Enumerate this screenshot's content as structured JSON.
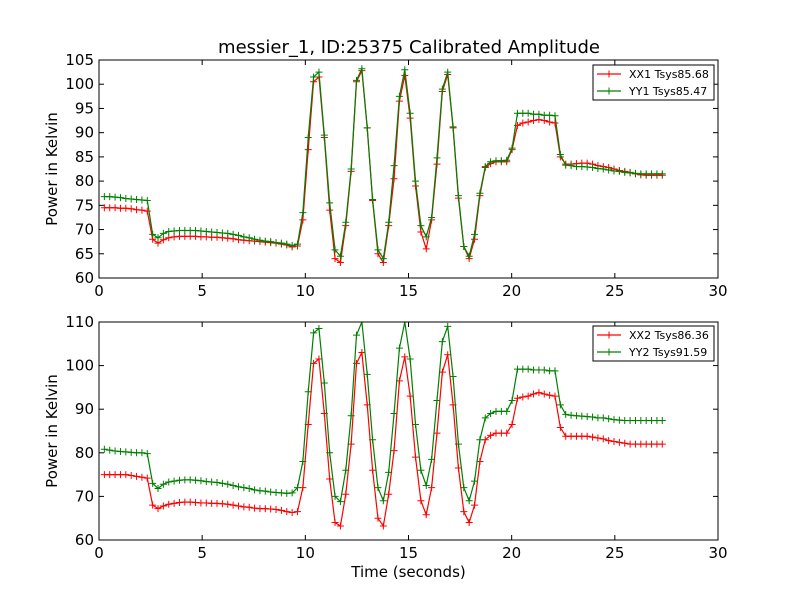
{
  "figure_title": "messier_1, ID:25375 Calibrated Amplitude",
  "chart_data": [
    {
      "type": "line",
      "title": "messier_1, ID:25375 Calibrated Amplitude",
      "xlabel": "",
      "ylabel": "Power in Kelvin",
      "xlim": [
        0,
        30
      ],
      "ylim": [
        60,
        105
      ],
      "xticks": [
        0,
        5,
        10,
        15,
        20,
        25,
        30
      ],
      "yticks": [
        60,
        65,
        70,
        75,
        80,
        85,
        90,
        95,
        100,
        105
      ],
      "grid": false,
      "legend_position": "top-right",
      "x": [
        0.26,
        0.52,
        0.78,
        1.04,
        1.3,
        1.56,
        1.82,
        2.08,
        2.34,
        2.6,
        2.86,
        3.12,
        3.38,
        3.64,
        3.9,
        4.16,
        4.42,
        4.68,
        4.94,
        5.2,
        5.46,
        5.72,
        5.98,
        6.24,
        6.5,
        6.76,
        7.02,
        7.28,
        7.54,
        7.8,
        8.06,
        8.32,
        8.58,
        8.84,
        9.1,
        9.36,
        9.62,
        9.88,
        10.14,
        10.4,
        10.66,
        10.92,
        11.18,
        11.44,
        11.7,
        11.96,
        12.22,
        12.48,
        12.74,
        13.0,
        13.26,
        13.52,
        13.78,
        14.04,
        14.3,
        14.56,
        14.82,
        15.08,
        15.34,
        15.6,
        15.86,
        16.12,
        16.38,
        16.64,
        16.9,
        17.16,
        17.42,
        17.68,
        17.94,
        18.2,
        18.46,
        18.72,
        18.98,
        19.24,
        19.5,
        19.76,
        20.02,
        20.28,
        20.54,
        20.8,
        21.06,
        21.32,
        21.58,
        21.84,
        22.1,
        22.36,
        22.62,
        22.88,
        23.14,
        23.4,
        23.66,
        23.92,
        24.18,
        24.44,
        24.7,
        24.96,
        25.22,
        25.48,
        25.74,
        26.0,
        26.26,
        26.52,
        26.78,
        27.04,
        27.3
      ],
      "series": [
        {
          "name": "XX1 Tsys85.68",
          "color": "#ff0000",
          "values": [
            74.5,
            74.5,
            74.5,
            74.4,
            74.4,
            74.3,
            74.1,
            74.0,
            73.8,
            68.0,
            67.2,
            67.9,
            68.3,
            68.5,
            68.6,
            68.6,
            68.6,
            68.6,
            68.5,
            68.5,
            68.4,
            68.4,
            68.3,
            68.2,
            68.1,
            67.9,
            67.8,
            67.7,
            67.6,
            67.5,
            67.4,
            67.3,
            67.2,
            67.0,
            66.8,
            66.4,
            66.6,
            72.0,
            86.5,
            100.5,
            101.5,
            89.0,
            74.0,
            64.0,
            63.2,
            70.8,
            82.0,
            100.5,
            102.8,
            91.0,
            76.0,
            65.0,
            63.2,
            70.8,
            80.5,
            96.5,
            101.8,
            93.0,
            79.0,
            69.5,
            66.0,
            72.0,
            83.5,
            98.5,
            102.0,
            91.0,
            76.5,
            66.5,
            64.0,
            68.0,
            77.0,
            82.8,
            83.6,
            84.0,
            84.0,
            84.0,
            86.5,
            91.5,
            92.0,
            92.2,
            92.5,
            92.7,
            92.5,
            92.2,
            92.0,
            85.0,
            83.5,
            83.5,
            83.6,
            83.7,
            83.7,
            83.5,
            83.2,
            83.0,
            82.8,
            82.5,
            82.2,
            82.0,
            81.8,
            81.5,
            81.3,
            81.2,
            81.2,
            81.2,
            81.2
          ]
        },
        {
          "name": "YY1 Tsys85.47",
          "color": "#008000",
          "values": [
            76.8,
            76.8,
            76.7,
            76.6,
            76.4,
            76.3,
            76.2,
            76.1,
            76.0,
            69.0,
            68.3,
            69.2,
            69.6,
            69.7,
            69.8,
            69.8,
            69.8,
            69.8,
            69.7,
            69.6,
            69.5,
            69.4,
            69.3,
            69.2,
            69.0,
            68.8,
            68.5,
            68.3,
            68.0,
            67.8,
            67.6,
            67.5,
            67.3,
            67.2,
            67.0,
            66.7,
            67.0,
            73.5,
            89.0,
            101.5,
            102.5,
            89.5,
            75.5,
            65.8,
            64.5,
            71.5,
            82.5,
            100.8,
            103.2,
            91.0,
            76.2,
            65.8,
            64.0,
            71.5,
            83.2,
            97.5,
            103.0,
            94.0,
            80.0,
            70.8,
            68.5,
            72.5,
            84.8,
            99.0,
            102.5,
            91.2,
            77.0,
            66.5,
            64.5,
            69.0,
            77.5,
            83.0,
            84.0,
            84.2,
            84.2,
            84.3,
            86.8,
            94.0,
            94.0,
            94.0,
            93.8,
            93.8,
            93.6,
            93.6,
            93.5,
            85.5,
            83.3,
            83.2,
            83.0,
            83.0,
            82.9,
            82.8,
            82.6,
            82.5,
            82.3,
            82.1,
            82.0,
            81.8,
            81.7,
            81.6,
            81.5,
            81.5,
            81.5,
            81.5,
            81.5
          ]
        }
      ]
    },
    {
      "type": "line",
      "title": "",
      "xlabel": "Time (seconds)",
      "ylabel": "Power in Kelvin",
      "xlim": [
        0,
        30
      ],
      "ylim": [
        60,
        110
      ],
      "xticks": [
        0,
        5,
        10,
        15,
        20,
        25,
        30
      ],
      "yticks": [
        60,
        70,
        80,
        90,
        100,
        110
      ],
      "grid": false,
      "legend_position": "top-right",
      "x": [
        0.26,
        0.52,
        0.78,
        1.04,
        1.3,
        1.56,
        1.82,
        2.08,
        2.34,
        2.6,
        2.86,
        3.12,
        3.38,
        3.64,
        3.9,
        4.16,
        4.42,
        4.68,
        4.94,
        5.2,
        5.46,
        5.72,
        5.98,
        6.24,
        6.5,
        6.76,
        7.02,
        7.28,
        7.54,
        7.8,
        8.06,
        8.32,
        8.58,
        8.84,
        9.1,
        9.36,
        9.62,
        9.88,
        10.14,
        10.4,
        10.66,
        10.92,
        11.18,
        11.44,
        11.7,
        11.96,
        12.22,
        12.48,
        12.74,
        13.0,
        13.26,
        13.52,
        13.78,
        14.04,
        14.3,
        14.56,
        14.82,
        15.08,
        15.34,
        15.6,
        15.86,
        16.12,
        16.38,
        16.64,
        16.9,
        17.16,
        17.42,
        17.68,
        17.94,
        18.2,
        18.46,
        18.72,
        18.98,
        19.24,
        19.5,
        19.76,
        20.02,
        20.28,
        20.54,
        20.8,
        21.06,
        21.32,
        21.58,
        21.84,
        22.1,
        22.36,
        22.62,
        22.88,
        23.14,
        23.4,
        23.66,
        23.92,
        24.18,
        24.44,
        24.7,
        24.96,
        25.22,
        25.48,
        25.74,
        26.0,
        26.26,
        26.52,
        26.78,
        27.04,
        27.3
      ],
      "series": [
        {
          "name": "XX2 Tsys86.36",
          "color": "#ff0000",
          "values": [
            75.0,
            75.0,
            75.0,
            75.0,
            75.0,
            74.8,
            74.6,
            74.4,
            74.2,
            68.0,
            67.2,
            67.8,
            68.2,
            68.4,
            68.6,
            68.7,
            68.7,
            68.6,
            68.5,
            68.5,
            68.4,
            68.4,
            68.3,
            68.2,
            68.0,
            67.8,
            67.6,
            67.5,
            67.3,
            67.2,
            67.2,
            67.1,
            67.0,
            66.8,
            66.5,
            66.3,
            66.5,
            72.0,
            86.5,
            100.5,
            101.5,
            89.0,
            74.0,
            64.0,
            63.2,
            70.5,
            82.0,
            100.5,
            103.0,
            91.0,
            76.0,
            65.0,
            63.2,
            70.5,
            80.5,
            96.5,
            102.0,
            93.0,
            79.0,
            69.0,
            65.8,
            72.0,
            84.5,
            98.5,
            102.5,
            91.0,
            76.5,
            66.5,
            64.0,
            68.0,
            78.0,
            83.0,
            84.0,
            84.5,
            84.5,
            84.5,
            86.5,
            92.5,
            92.8,
            93.0,
            93.5,
            93.8,
            93.5,
            93.2,
            93.0,
            85.8,
            83.8,
            83.8,
            83.8,
            83.8,
            83.8,
            83.6,
            83.4,
            83.2,
            82.8,
            82.6,
            82.4,
            82.2,
            82.0,
            82.0,
            82.0,
            82.0,
            82.0,
            82.0,
            82.0
          ]
        },
        {
          "name": "YY2 Tsys91.59",
          "color": "#008000",
          "values": [
            80.8,
            80.6,
            80.4,
            80.3,
            80.2,
            80.1,
            80.0,
            80.0,
            79.8,
            73.0,
            71.8,
            72.8,
            73.3,
            73.5,
            73.7,
            73.8,
            73.8,
            73.7,
            73.6,
            73.4,
            73.3,
            73.2,
            73.0,
            72.8,
            72.5,
            72.2,
            72.0,
            71.8,
            71.5,
            71.3,
            71.2,
            71.0,
            70.9,
            70.8,
            70.7,
            70.8,
            72.0,
            78.0,
            94.0,
            107.5,
            108.5,
            96.0,
            80.0,
            70.0,
            68.8,
            76.0,
            88.5,
            107.0,
            110.0,
            98.0,
            83.0,
            72.0,
            69.0,
            75.5,
            89.0,
            104.0,
            110.0,
            101.5,
            86.5,
            76.0,
            72.5,
            78.5,
            92.0,
            105.5,
            109.0,
            97.5,
            82.0,
            72.0,
            69.0,
            73.5,
            83.0,
            88.0,
            89.0,
            89.5,
            89.5,
            89.5,
            92.0,
            99.2,
            99.2,
            99.2,
            99.0,
            99.0,
            99.0,
            98.8,
            98.8,
            91.0,
            88.8,
            88.6,
            88.5,
            88.4,
            88.3,
            88.2,
            88.0,
            88.0,
            87.8,
            87.6,
            87.5,
            87.4,
            87.4,
            87.4,
            87.4,
            87.4,
            87.4,
            87.4,
            87.4
          ]
        }
      ]
    }
  ]
}
